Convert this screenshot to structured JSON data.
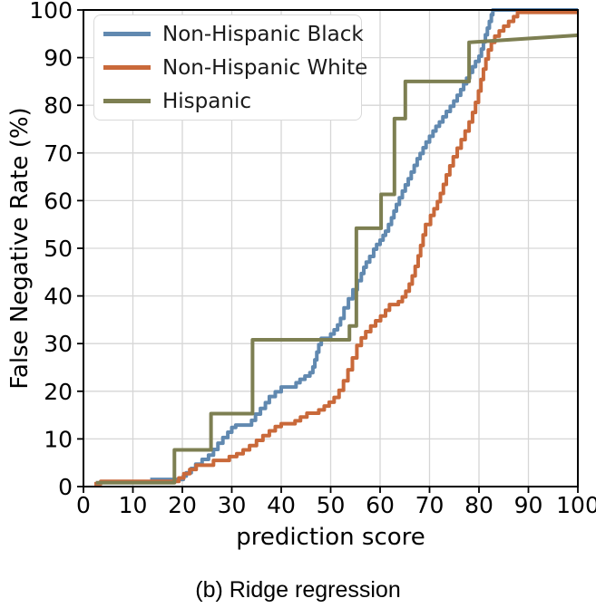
{
  "figure": {
    "caption": "(b) Ridge regression"
  },
  "chart_data": {
    "type": "line",
    "title": "",
    "xlabel": "prediction score",
    "ylabel": "False Negative Rate (%)",
    "xlim": [
      0,
      100
    ],
    "ylim": [
      0,
      100
    ],
    "xticks": [
      0,
      10,
      20,
      30,
      40,
      50,
      60,
      70,
      80,
      90,
      100
    ],
    "yticks": [
      0,
      10,
      20,
      30,
      40,
      50,
      60,
      70,
      80,
      90,
      100
    ],
    "grid": true,
    "grid_color": "#d6d6d6",
    "legend_position": "upper left",
    "series": [
      {
        "name": "Non-Hispanic Black",
        "color": "#6189b0",
        "mode": "step",
        "points": [
          [
            13.5,
            1.5
          ],
          [
            20.2,
            2.2
          ],
          [
            20.8,
            2.9
          ],
          [
            21.8,
            3.8
          ],
          [
            22.7,
            4.7
          ],
          [
            24,
            5.7
          ],
          [
            25.3,
            6.6
          ],
          [
            26.3,
            7.8
          ],
          [
            27.2,
            9.1
          ],
          [
            28.2,
            10.3
          ],
          [
            29.2,
            11.4
          ],
          [
            30,
            12.4
          ],
          [
            30.8,
            12.9
          ],
          [
            34,
            13.9
          ],
          [
            34.8,
            15.2
          ],
          [
            35.8,
            16.4
          ],
          [
            36.8,
            17.6
          ],
          [
            37.6,
            18.9
          ],
          [
            38.8,
            19.9
          ],
          [
            40,
            20.9
          ],
          [
            43,
            21.8
          ],
          [
            43.8,
            22.5
          ],
          [
            44.8,
            23.2
          ],
          [
            45.8,
            23.9
          ],
          [
            46.4,
            25.1
          ],
          [
            46.8,
            26.6
          ],
          [
            47.2,
            28.2
          ],
          [
            47.6,
            29.8
          ],
          [
            48.1,
            31.1
          ],
          [
            50,
            32
          ],
          [
            50.7,
            32.9
          ],
          [
            51.4,
            33.9
          ],
          [
            52,
            35.3
          ],
          [
            52.7,
            37.5
          ],
          [
            53.6,
            39.4
          ],
          [
            54.5,
            41.3
          ],
          [
            55.4,
            43.2
          ],
          [
            56.2,
            44.7
          ],
          [
            56.7,
            46
          ],
          [
            57.2,
            47.1
          ],
          [
            57.9,
            48.3
          ],
          [
            58.7,
            49.8
          ],
          [
            59.3,
            50.8
          ],
          [
            60,
            51.7
          ],
          [
            60.6,
            52.7
          ],
          [
            61.1,
            53.6
          ],
          [
            61.7,
            55
          ],
          [
            62.3,
            56.4
          ],
          [
            62.8,
            57.8
          ],
          [
            63.3,
            59.2
          ],
          [
            63.9,
            60.6
          ],
          [
            64.5,
            62
          ],
          [
            65.1,
            63.3
          ],
          [
            65.7,
            64.6
          ],
          [
            66.3,
            66
          ],
          [
            66.9,
            67.4
          ],
          [
            67.5,
            68.8
          ],
          [
            68.1,
            69.9
          ],
          [
            68.7,
            71.1
          ],
          [
            69.3,
            72.3
          ],
          [
            70,
            73.5
          ],
          [
            70.7,
            74.6
          ],
          [
            71.3,
            75.6
          ],
          [
            72,
            76.5
          ],
          [
            72.7,
            77.6
          ],
          [
            73.4,
            78.7
          ],
          [
            74.2,
            79.8
          ],
          [
            74.9,
            80.9
          ],
          [
            75.6,
            82.1
          ],
          [
            76.3,
            83.3
          ],
          [
            76.9,
            84.5
          ],
          [
            77.5,
            85.7
          ],
          [
            78.1,
            86.9
          ],
          [
            78.7,
            88.1
          ],
          [
            79.3,
            89.2
          ],
          [
            80,
            90.3
          ],
          [
            80.5,
            91.8
          ],
          [
            80.9,
            93.3
          ],
          [
            81.3,
            94.8
          ],
          [
            81.7,
            96.2
          ],
          [
            82.1,
            97.6
          ],
          [
            82.5,
            99
          ],
          [
            82.8,
            100
          ],
          [
            100,
            100
          ]
        ]
      },
      {
        "name": "Non-Hispanic White",
        "color": "#c9693a",
        "mode": "step",
        "points": [
          [
            2.2,
            0.6
          ],
          [
            3.5,
            1.1
          ],
          [
            19.3,
            1.8
          ],
          [
            20.3,
            2.7
          ],
          [
            21.5,
            3.6
          ],
          [
            22.8,
            4.5
          ],
          [
            26.3,
            5.5
          ],
          [
            29.5,
            6.3
          ],
          [
            31,
            6.9
          ],
          [
            32.3,
            7.7
          ],
          [
            33.6,
            8.6
          ],
          [
            35,
            9.7
          ],
          [
            36.3,
            10.7
          ],
          [
            37.6,
            11.7
          ],
          [
            38.8,
            12.6
          ],
          [
            40,
            13.2
          ],
          [
            42.8,
            13.8
          ],
          [
            43.9,
            14.6
          ],
          [
            45.2,
            15.4
          ],
          [
            47.6,
            16.1
          ],
          [
            48.7,
            16.9
          ],
          [
            49.7,
            17.7
          ],
          [
            50.7,
            18.7
          ],
          [
            51.7,
            20.2
          ],
          [
            52.6,
            22.2
          ],
          [
            53.5,
            24.5
          ],
          [
            54.4,
            27
          ],
          [
            55.3,
            29.6
          ],
          [
            56.2,
            31.2
          ],
          [
            57.1,
            32.5
          ],
          [
            58.1,
            33.7
          ],
          [
            59.1,
            34.8
          ],
          [
            60.1,
            35.8
          ],
          [
            61.1,
            37
          ],
          [
            61.9,
            38.2
          ],
          [
            63.7,
            38.8
          ],
          [
            64.5,
            39.8
          ],
          [
            65.2,
            41
          ],
          [
            65.9,
            42.5
          ],
          [
            66.5,
            44.2
          ],
          [
            67.1,
            46.2
          ],
          [
            67.7,
            48.4
          ],
          [
            68.2,
            50.6
          ],
          [
            68.7,
            52.8
          ],
          [
            69.2,
            55
          ],
          [
            70.2,
            56.9
          ],
          [
            70.9,
            58.3
          ],
          [
            71.6,
            59.8
          ],
          [
            72.2,
            61.5
          ],
          [
            72.8,
            63.4
          ],
          [
            73.4,
            65.4
          ],
          [
            74.1,
            67.3
          ],
          [
            74.8,
            69.2
          ],
          [
            75.6,
            71
          ],
          [
            76.4,
            72.8
          ],
          [
            77.2,
            74.6
          ],
          [
            78,
            76.5
          ],
          [
            78.7,
            78.5
          ],
          [
            79.3,
            80.6
          ],
          [
            79.9,
            83
          ],
          [
            80.4,
            85.4
          ],
          [
            80.9,
            87.6
          ],
          [
            81.4,
            89.7
          ],
          [
            81.9,
            91.6
          ],
          [
            82.5,
            93.2
          ],
          [
            83.2,
            94.5
          ],
          [
            84.1,
            95.6
          ],
          [
            85,
            96.6
          ],
          [
            86,
            97.6
          ],
          [
            87,
            98.6
          ],
          [
            87.8,
            99.5
          ],
          [
            100,
            99.5
          ]
        ]
      },
      {
        "name": "Hispanic",
        "color": "#7d7f52",
        "mode": "line",
        "points": [
          [
            2.5,
            0.8
          ],
          [
            18.4,
            0.8
          ],
          [
            18.4,
            7.7
          ],
          [
            25.8,
            7.7
          ],
          [
            25.8,
            15.3
          ],
          [
            34.2,
            15.3
          ],
          [
            34.2,
            30.8
          ],
          [
            53.8,
            30.8
          ],
          [
            53.8,
            33.7
          ],
          [
            55.2,
            33.7
          ],
          [
            55.2,
            54.2
          ],
          [
            60.2,
            54.2
          ],
          [
            60.2,
            61.3
          ],
          [
            62.9,
            61.3
          ],
          [
            62.9,
            77.2
          ],
          [
            65.1,
            77.2
          ],
          [
            65.1,
            85
          ],
          [
            78,
            85
          ],
          [
            78,
            93.2
          ],
          [
            100,
            94.7
          ]
        ]
      }
    ]
  }
}
